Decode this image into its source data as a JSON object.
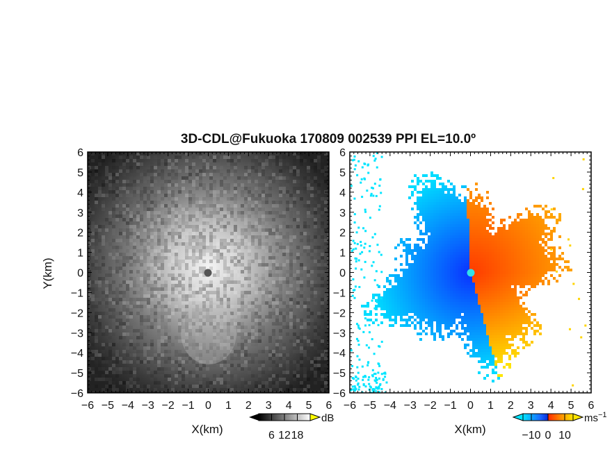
{
  "chart_data": [
    {
      "type": "heatmap",
      "panel": "reflectivity",
      "title": "3D-CDL@Fukuoka 170809 002539 PPI EL=10.0º",
      "xlabel": "X(km)",
      "ylabel": "Y(km)",
      "xlim": [
        -6,
        6
      ],
      "ylim": [
        -6,
        6
      ],
      "xticks": [
        "−6",
        "−5",
        "−4",
        "−3",
        "−2",
        "−1",
        "0",
        "1",
        "2",
        "3",
        "4",
        "5",
        "6"
      ],
      "yticks": [
        "−6",
        "−5",
        "−4",
        "−3",
        "−2",
        "−1",
        "0",
        "1",
        "2",
        "3",
        "4",
        "5",
        "6"
      ],
      "colormap": "grayscale",
      "colorbar": {
        "unit": "dB",
        "ticks": [
          "6",
          "12",
          "18"
        ],
        "range": [
          0,
          24
        ]
      },
      "center_marker_km": [
        0,
        0
      ],
      "description_values": {
        "center_peak_db": 18,
        "edge_db": 6
      }
    },
    {
      "type": "heatmap",
      "panel": "doppler_velocity",
      "xlabel": "X(km)",
      "xlim": [
        -6,
        6
      ],
      "ylim": [
        -6,
        6
      ],
      "xticks": [
        "−6",
        "−5",
        "−4",
        "−3",
        "−2",
        "−1",
        "0",
        "1",
        "2",
        "3",
        "4",
        "5",
        "6"
      ],
      "yticks": [
        "−6",
        "−5",
        "−4",
        "−3",
        "−2",
        "−1",
        "0",
        "1",
        "2",
        "3",
        "4",
        "5",
        "6"
      ],
      "colormap": "cyan-blue-red-yellow",
      "colorbar": {
        "unit": "ms",
        "unit_sup": "−1",
        "ticks": [
          "−10",
          "0",
          "10"
        ],
        "range": [
          -15,
          15
        ]
      },
      "center_marker_km": [
        0,
        0
      ],
      "colors": {
        "cyan": "#00e5ff",
        "blue": "#0a3cff",
        "red": "#ff2a00",
        "orange": "#ff8c00",
        "yellow": "#ffe600"
      }
    }
  ]
}
